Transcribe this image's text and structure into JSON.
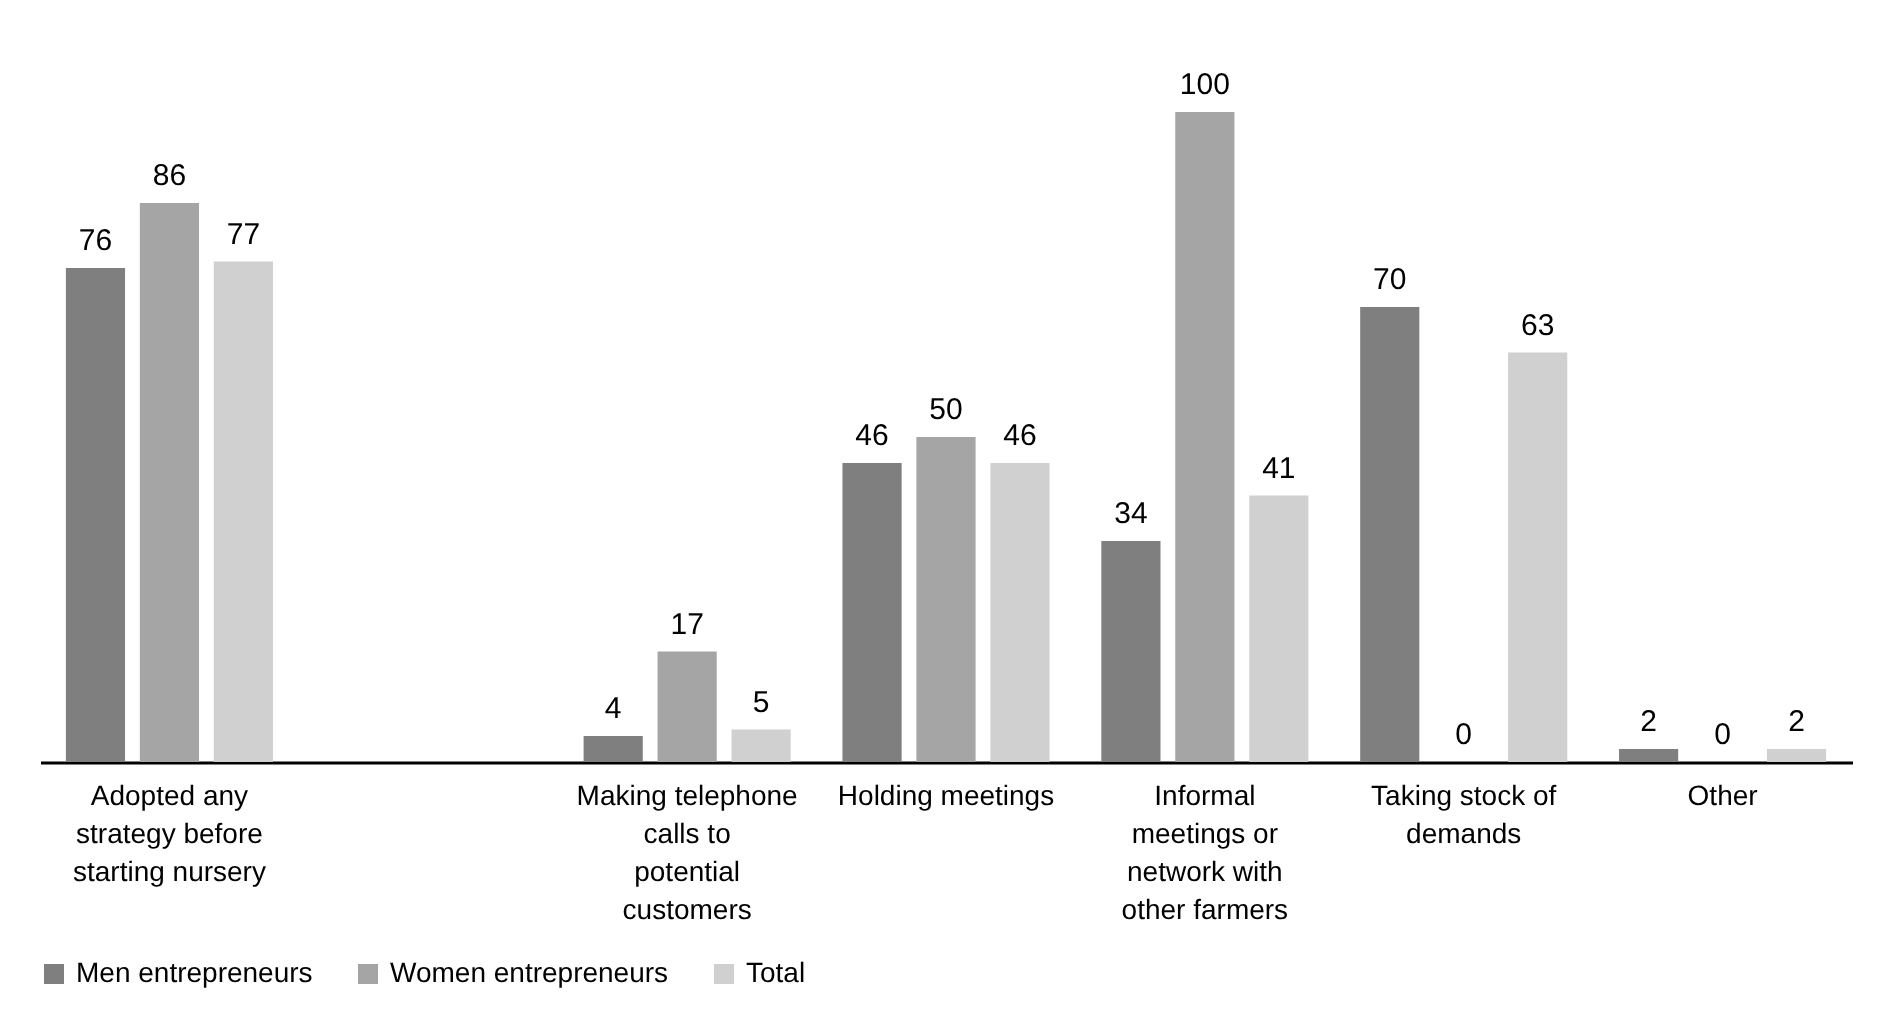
{
  "chart_data": {
    "type": "bar",
    "categories": [
      "Adopted any strategy before starting nursery",
      null,
      "Making telephone calls to potential customers",
      "Holding meetings",
      "Informal meetings or network with other farmers",
      "Taking stock of demands",
      "Other"
    ],
    "series": [
      {
        "name": "Men entrepreneurs",
        "color": "#7f7f7f",
        "values": [
          76,
          null,
          4,
          46,
          34,
          70,
          2
        ]
      },
      {
        "name": "Women entrepreneurs",
        "color": "#a5a5a5",
        "values": [
          86,
          null,
          17,
          50,
          100,
          0,
          0
        ]
      },
      {
        "name": "Total",
        "color": "#d0d0d0",
        "values": [
          77,
          null,
          5,
          46,
          41,
          63,
          2
        ]
      }
    ],
    "data_labels": true,
    "legend": "bottom"
  }
}
